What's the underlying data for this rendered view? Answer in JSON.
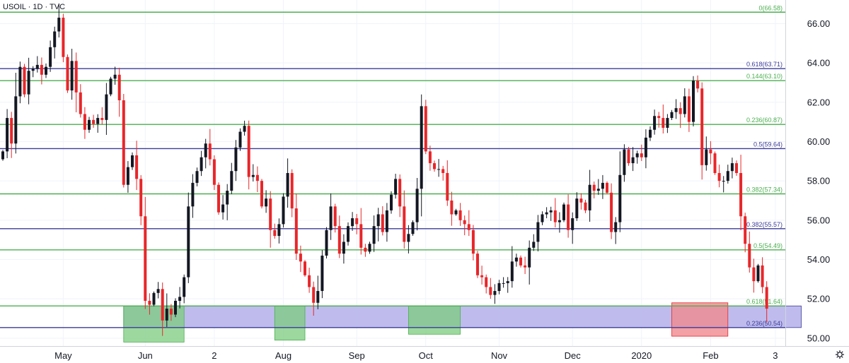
{
  "chart_data": {
    "type": "candlestick",
    "title": "USOIL · 1D · TVC",
    "ylim": [
      49.6,
      67.2
    ],
    "y_ticks": [
      "50.00",
      "52.00",
      "54.00",
      "56.00",
      "58.00",
      "60.00",
      "62.00",
      "64.00",
      "66.00"
    ],
    "y_tick_values": [
      50,
      52,
      54,
      56,
      58,
      60,
      62,
      64,
      66
    ],
    "x_tick_labels": [
      "May",
      "Jun",
      "2",
      "Aug",
      "Sep",
      "Oct",
      "Nov",
      "Dec",
      "2020",
      "Feb",
      "3"
    ],
    "x_tick_bar_index": [
      14,
      33,
      49,
      65,
      82,
      98,
      115,
      132,
      148,
      164,
      179
    ],
    "bar_count": 182,
    "grid": true,
    "colors": {
      "up": "#131722",
      "down": "#e8262a",
      "fib_green": "#4caf50",
      "fib_purple": "#3b3b98",
      "zone_purple": "#b4b0ea",
      "zone_green": "#7ccc7f",
      "zone_red": "#f08a8e"
    },
    "fib_levels": [
      {
        "label": "0(66.58)",
        "value": 66.58,
        "color": "green"
      },
      {
        "label": "0.618(63.71)",
        "value": 63.71,
        "color": "purple"
      },
      {
        "label": "0.144(63.10)",
        "value": 63.1,
        "color": "green"
      },
      {
        "label": "0.236(60.87)",
        "value": 60.87,
        "color": "green"
      },
      {
        "label": "0.5(59.64)",
        "value": 59.64,
        "color": "purple"
      },
      {
        "label": "0.382(57.34)",
        "value": 57.34,
        "color": "green"
      },
      {
        "label": "0.382(55.57)",
        "value": 55.57,
        "color": "purple"
      },
      {
        "label": "0.5(54.49)",
        "value": 54.49,
        "color": "green"
      },
      {
        "label": "0.618(51.64)",
        "value": 51.64,
        "color": "green"
      },
      {
        "label": "0.236(50.54)",
        "value": 50.54,
        "color": "purple"
      }
    ],
    "zones": [
      {
        "kind": "purple",
        "x0": 28,
        "x1": 185,
        "y0": 50.54,
        "y1": 51.64
      },
      {
        "kind": "green",
        "x0": 28,
        "x1": 42,
        "y0": 49.8,
        "y1": 51.64
      },
      {
        "kind": "green",
        "x0": 63,
        "x1": 70,
        "y0": 49.9,
        "y1": 51.64
      },
      {
        "kind": "green",
        "x0": 94,
        "x1": 106,
        "y0": 50.2,
        "y1": 51.64
      },
      {
        "kind": "red",
        "x0": 155,
        "x1": 168,
        "y0": 50.1,
        "y1": 51.8
      }
    ],
    "closes": [
      59.5,
      61.2,
      59.9,
      62.3,
      63.8,
      62.4,
      63.6,
      63.7,
      63.9,
      63.4,
      63.8,
      64.8,
      65.6,
      66.3,
      64.3,
      62.6,
      64.1,
      62.5,
      61.4,
      60.6,
      61.1,
      60.9,
      61.2,
      61.1,
      62.4,
      63.2,
      63.4,
      62.1,
      57.8,
      58.7,
      59.3,
      58.1,
      56.2,
      51.9,
      51.7,
      52.3,
      52.5,
      50.9,
      51.5,
      51.2,
      51.9,
      52.1,
      53.1,
      56.7,
      57.9,
      58.5,
      59.2,
      59.9,
      59.1,
      57.8,
      56.4,
      56.8,
      57.5,
      58.5,
      59.7,
      60.5,
      60.8,
      58.2,
      58.3,
      58.0,
      56.7,
      57.1,
      55.5,
      55.2,
      55.8,
      57.2,
      58.4,
      56.6,
      54.3,
      53.9,
      53.2,
      52.6,
      51.8,
      52.4,
      54.2,
      55.5,
      56.7,
      55.7,
      54.3,
      54.9,
      55.7,
      56.1,
      55.8,
      54.6,
      54.4,
      54.8,
      55.7,
      56.3,
      55.4,
      56.5,
      57.3,
      58.1,
      56.7,
      54.9,
      55.3,
      55.9,
      57.6,
      61.8,
      59.5,
      58.9,
      58.6,
      58.6,
      58.4,
      57.0,
      56.3,
      56.5,
      56.0,
      55.8,
      55.5,
      54.3,
      53.2,
      53.1,
      52.6,
      52.2,
      52.4,
      52.8,
      52.8,
      52.9,
      53.9,
      54.1,
      53.7,
      53.6,
      54.6,
      54.9,
      55.9,
      56.3,
      56.4,
      56.5,
      55.9,
      56.0,
      56.8,
      55.5,
      56.1,
      57.1,
      56.9,
      56.5,
      57.8,
      57.5,
      57.6,
      57.9,
      57.4,
      55.4,
      55.9,
      58.3,
      59.6,
      58.9,
      59.2,
      59.4,
      59.2,
      60.2,
      60.6,
      61.3,
      61.2,
      60.7,
      61.2,
      61.5,
      61.7,
      61.4,
      62.3,
      61.0,
      63.1,
      62.7,
      58.8,
      59.6,
      59.4,
      58.4,
      58.0,
      58.0,
      58.5,
      58.9,
      58.4,
      56.2,
      54.8,
      53.6,
      52.9,
      53.7,
      52.6,
      51.5
    ]
  }
}
